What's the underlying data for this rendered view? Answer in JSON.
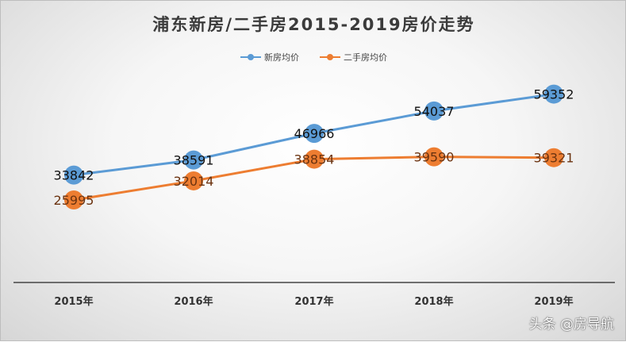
{
  "chart_data": {
    "type": "line",
    "title": "浦东新房/二手房2015-2019房价走势",
    "categories": [
      "2015年",
      "2016年",
      "2017年",
      "2018年",
      "2019年"
    ],
    "series": [
      {
        "name": "新房均价",
        "color": "#5b9bd5",
        "values": [
          33842,
          38591,
          46966,
          54037,
          59352
        ]
      },
      {
        "name": "二手房均价",
        "color": "#ed7d31",
        "values": [
          25995,
          32014,
          38854,
          39590,
          39321
        ]
      }
    ],
    "ylim": [
      0,
      70000
    ],
    "legend_position": "top",
    "grid": false
  },
  "watermark": "头条 @房导航"
}
